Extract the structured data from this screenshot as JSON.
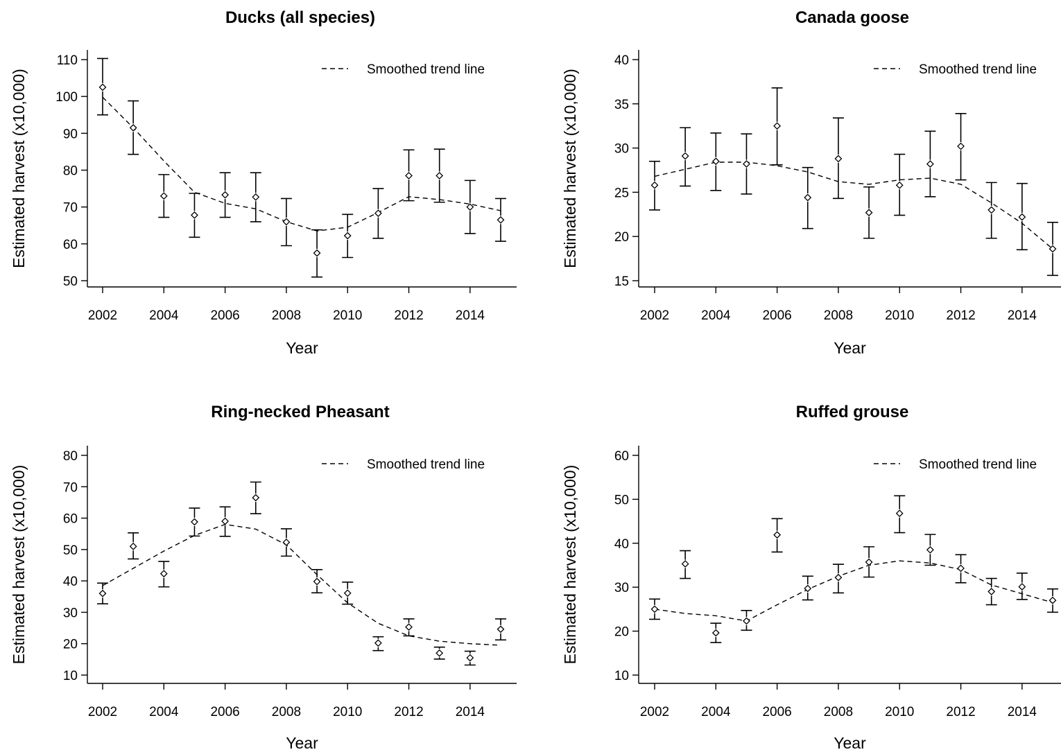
{
  "chart_data": [
    {
      "type": "scatter",
      "title": "Ducks (all species)",
      "xlabel": "Year",
      "ylabel": "Estimated harvest (x10,000)",
      "xlim": [
        2002,
        2015
      ],
      "ylim": [
        50,
        110
      ],
      "x_ticks": [
        2002,
        2004,
        2006,
        2008,
        2010,
        2012,
        2014
      ],
      "y_ticks": [
        50,
        60,
        70,
        80,
        90,
        100,
        110
      ],
      "legend": {
        "position": "top-right",
        "label": "Smoothed trend line",
        "style": "dashed"
      },
      "x": [
        2002,
        2003,
        2004,
        2005,
        2006,
        2007,
        2008,
        2009,
        2010,
        2011,
        2012,
        2013,
        2014,
        2015
      ],
      "series": [
        {
          "values": [
            102.5,
            91.5,
            73.0,
            67.8,
            73.3,
            72.7,
            66.0,
            57.5,
            62.2,
            68.3,
            78.5,
            78.5,
            70.0,
            66.5
          ],
          "lower": [
            95.0,
            84.3,
            67.2,
            61.8,
            67.2,
            66.0,
            59.5,
            51.0,
            56.3,
            61.5,
            71.7,
            71.3,
            62.8,
            60.7
          ],
          "upper": [
            110.3,
            98.8,
            78.8,
            73.7,
            79.3,
            79.3,
            72.3,
            63.8,
            68.0,
            75.0,
            85.5,
            85.7,
            77.2,
            72.3
          ]
        },
        {
          "name": "Smoothed trend line",
          "style": "dashed",
          "values": [
            99.8,
            91.5,
            82.5,
            74.0,
            71.0,
            69.5,
            66.0,
            63.5,
            64.5,
            68.5,
            72.8,
            72.0,
            70.8,
            69.0
          ]
        }
      ]
    },
    {
      "type": "scatter",
      "title": "Canada goose",
      "xlabel": "Year",
      "ylabel": "Estimated harvest (x10,000)",
      "xlim": [
        2002,
        2015
      ],
      "ylim": [
        15,
        40
      ],
      "x_ticks": [
        2002,
        2004,
        2006,
        2008,
        2010,
        2012,
        2014
      ],
      "y_ticks": [
        15,
        20,
        25,
        30,
        35,
        40
      ],
      "legend": {
        "position": "top-right",
        "label": "Smoothed trend line",
        "style": "dashed"
      },
      "x": [
        2002,
        2003,
        2004,
        2005,
        2006,
        2007,
        2008,
        2009,
        2010,
        2011,
        2012,
        2013,
        2014,
        2015
      ],
      "series": [
        {
          "values": [
            25.8,
            29.1,
            28.5,
            28.2,
            32.5,
            24.4,
            28.8,
            22.7,
            25.8,
            28.2,
            30.2,
            23.0,
            22.2,
            18.6
          ],
          "lower": [
            23.0,
            25.7,
            25.2,
            24.8,
            28.1,
            20.9,
            24.3,
            19.8,
            22.4,
            24.5,
            26.4,
            19.8,
            18.5,
            15.6
          ],
          "upper": [
            28.5,
            32.3,
            31.7,
            31.6,
            36.8,
            27.8,
            33.4,
            25.6,
            29.3,
            31.9,
            33.9,
            26.1,
            26.0,
            21.6
          ]
        },
        {
          "name": "Smoothed trend line",
          "style": "dashed",
          "values": [
            26.8,
            27.6,
            28.4,
            28.4,
            28.0,
            27.3,
            26.2,
            25.9,
            26.4,
            26.6,
            25.9,
            23.8,
            21.5,
            18.6
          ]
        }
      ]
    },
    {
      "type": "scatter",
      "title": "Ring-necked Pheasant",
      "xlabel": "Year",
      "ylabel": "Estimated harvest (x10,000)",
      "xlim": [
        2002,
        2015
      ],
      "ylim": [
        10,
        80
      ],
      "x_ticks": [
        2002,
        2004,
        2006,
        2008,
        2010,
        2012,
        2014
      ],
      "y_ticks": [
        10,
        20,
        30,
        40,
        50,
        60,
        70,
        80
      ],
      "legend": {
        "position": "top-right",
        "label": "Smoothed trend line",
        "style": "dashed"
      },
      "x": [
        2002,
        2003,
        2004,
        2005,
        2006,
        2007,
        2008,
        2009,
        2010,
        2011,
        2012,
        2013,
        2014,
        2015
      ],
      "series": [
        {
          "values": [
            36.0,
            51.0,
            42.3,
            58.8,
            59.0,
            66.5,
            52.3,
            39.8,
            36.1,
            20.2,
            25.3,
            17.0,
            15.5,
            24.6
          ],
          "lower": [
            32.7,
            47.0,
            38.1,
            54.3,
            54.2,
            61.4,
            47.9,
            36.2,
            32.6,
            17.8,
            22.5,
            15.1,
            13.2,
            21.2
          ],
          "upper": [
            39.3,
            55.3,
            46.2,
            63.2,
            63.6,
            71.5,
            56.6,
            43.6,
            39.6,
            22.2,
            27.9,
            18.9,
            17.6,
            27.9
          ]
        },
        {
          "name": "Smoothed trend line",
          "style": "dashed",
          "values": [
            38.5,
            44.0,
            49.5,
            54.5,
            58.0,
            56.5,
            51.5,
            42.0,
            33.0,
            26.5,
            22.5,
            20.8,
            20.0,
            19.5
          ]
        }
      ]
    },
    {
      "type": "scatter",
      "title": "Ruffed grouse",
      "xlabel": "Year",
      "ylabel": "Estimated harvest (x10,000)",
      "xlim": [
        2002,
        2015
      ],
      "ylim": [
        10,
        60
      ],
      "x_ticks": [
        2002,
        2004,
        2006,
        2008,
        2010,
        2012,
        2014
      ],
      "y_ticks": [
        10,
        20,
        30,
        40,
        50,
        60
      ],
      "legend": {
        "position": "top-right",
        "label": "Smoothed trend line",
        "style": "dashed"
      },
      "x": [
        2002,
        2003,
        2004,
        2005,
        2006,
        2007,
        2008,
        2009,
        2010,
        2011,
        2012,
        2013,
        2014,
        2015
      ],
      "series": [
        {
          "values": [
            25.0,
            35.3,
            19.6,
            22.3,
            41.9,
            29.7,
            32.2,
            35.7,
            46.8,
            38.5,
            34.3,
            29.0,
            30.1,
            27.0
          ],
          "lower": [
            22.7,
            32.0,
            17.4,
            20.2,
            38.0,
            27.1,
            28.7,
            32.3,
            42.4,
            35.0,
            31.0,
            26.0,
            27.2,
            24.3
          ],
          "upper": [
            27.3,
            38.3,
            21.8,
            24.7,
            45.6,
            32.5,
            35.2,
            39.2,
            50.8,
            42.0,
            37.4,
            32.0,
            33.2,
            29.6
          ]
        },
        {
          "name": "Smoothed trend line",
          "style": "dashed",
          "values": [
            25.0,
            24.0,
            23.5,
            22.3,
            26.0,
            29.5,
            32.5,
            35.0,
            36.0,
            35.5,
            34.0,
            30.5,
            28.5,
            26.5
          ]
        }
      ]
    }
  ]
}
